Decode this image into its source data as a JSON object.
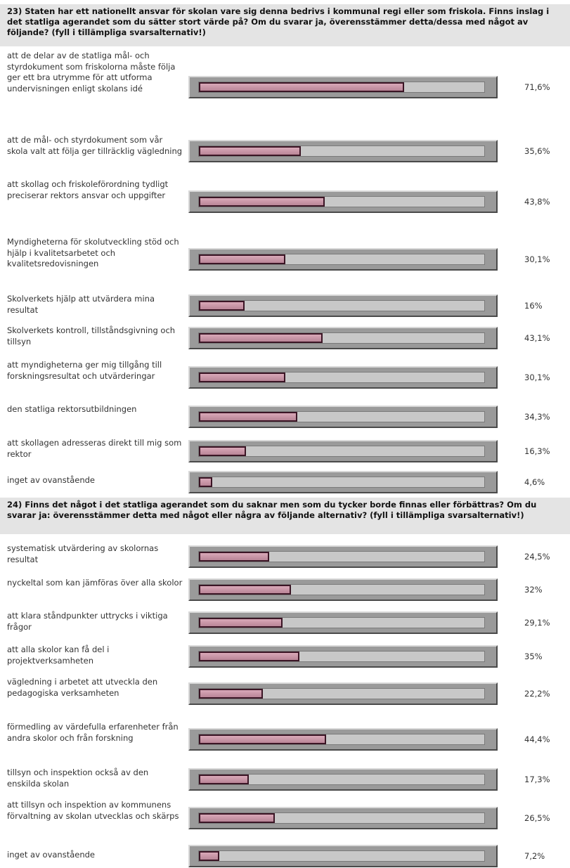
{
  "questions": [
    {
      "title": "23) Staten har ett nationellt ansvar för skolan vare sig denna bedrivs i kommunal regi eller som friskola. Finns inslag i det statliga agerandet som du sätter stort värde på? Om du svarar ja, överensstämmer detta/dessa med något av följande? (fyll i tillämpliga svarsalternativ!)",
      "items": [
        {
          "label": "att de delar av de statliga mål- och styrdokument som friskolorna måste följa ger ett bra utrymme för att utforma undervisningen enligt skolans idé",
          "value": 71.6,
          "value_label": "71,6%"
        },
        {
          "label": "att de mål- och styrdokument som vår skola valt att följa ger tillräcklig vägledning",
          "value": 35.6,
          "value_label": "35,6%"
        },
        {
          "label": "att skollag och friskoleförordning tydligt preciserar rektors ansvar och uppgifter",
          "value": 43.8,
          "value_label": "43,8%"
        },
        {
          "label": "Myndigheterna för skolutveckling stöd och hjälp i kvalitetsarbetet och kvalitetsredovisningen",
          "value": 30.1,
          "value_label": "30,1%"
        },
        {
          "label": "Skolverkets hjälp att utvärdera mina resultat",
          "value": 16,
          "value_label": "16%"
        },
        {
          "label": "Skolverkets kontroll, tillståndsgivning och tillsyn",
          "value": 43.1,
          "value_label": "43,1%"
        },
        {
          "label": "att myndigheterna ger mig tillgång till forskningsresultat och utvärderingar",
          "value": 30.1,
          "value_label": "30,1%"
        },
        {
          "label": "den statliga rektorsutbildningen",
          "value": 34.3,
          "value_label": "34,3%"
        },
        {
          "label": "att skollagen adresseras direkt till mig som rektor",
          "value": 16.3,
          "value_label": "16,3%"
        },
        {
          "label": "inget av ovanstående",
          "value": 4.6,
          "value_label": "4,6%"
        }
      ]
    },
    {
      "title": "24) Finns det något i det statliga agerandet som du saknar men som du tycker borde finnas eller förbättras? Om du svarar ja: överensstämmer detta med något eller några av följande alternativ? (fyll i tillämpliga svarsalternativ!)",
      "items": [
        {
          "label": "systematisk utvärdering av skolornas resultat",
          "value": 24.5,
          "value_label": "24,5%"
        },
        {
          "label": "nyckeltal som kan jämföras över alla skolor",
          "value": 32,
          "value_label": "32%"
        },
        {
          "label": "att klara ståndpunkter uttrycks i viktiga frågor",
          "value": 29.1,
          "value_label": "29,1%"
        },
        {
          "label": "att alla skolor kan få del i projektverksamheten",
          "value": 35,
          "value_label": "35%"
        },
        {
          "label": "vägledning i arbetet att utveckla den pedagogiska verksamheten",
          "value": 22.2,
          "value_label": "22,2%"
        },
        {
          "label": "förmedling av värdefulla erfarenheter från andra skolor och från forskning",
          "value": 44.4,
          "value_label": "44,4%"
        },
        {
          "label": "tillsyn och inspektion också av den enskilda skolan",
          "value": 17.3,
          "value_label": "17,3%"
        },
        {
          "label": "att tillsyn och inspektion av kommunens förvaltning av skolan utvecklas och skärps",
          "value": 26.5,
          "value_label": "26,5%"
        },
        {
          "label": "inget av ovanstående",
          "value": 7.2,
          "value_label": "7,2%"
        }
      ]
    }
  ],
  "chart_data": {
    "type": "bar",
    "orientation": "horizontal",
    "ylim": [
      0,
      100
    ],
    "groups": [
      {
        "categories": [
          "att de delar av de statliga mål- och styrdokument som friskolorna måste följa ger ett bra utrymme för att utforma undervisningen enligt skolans idé",
          "att de mål- och styrdokument som vår skola valt att följa ger tillräcklig vägledning",
          "att skollag och friskoleförordning tydligt preciserar rektors ansvar och uppgifter",
          "Myndigheterna för skolutveckling stöd och hjälp i kvalitetsarbetet och kvalitetsredovisningen",
          "Skolverkets hjälp att utvärdera mina resultat",
          "Skolverkets kontroll, tillståndsgivning och tillsyn",
          "att myndigheterna ger mig tillgång till forskningsresultat och utvärderingar",
          "den statliga rektorsutbildningen",
          "att skollagen adresseras direkt till mig som rektor",
          "inget av ovanstående"
        ],
        "values": [
          71.6,
          35.6,
          43.8,
          30.1,
          16,
          43.1,
          30.1,
          34.3,
          16.3,
          4.6
        ]
      },
      {
        "categories": [
          "systematisk utvärdering av skolornas resultat",
          "nyckeltal som kan jämföras över alla skolor",
          "att klara ståndpunkter uttrycks i viktiga frågor",
          "att alla skolor kan få del i projektverksamheten",
          "vägledning i arbetet att utveckla den pedagogiska verksamheten",
          "förmedling av värdefulla erfarenheter från andra skolor och från forskning",
          "tillsyn och inspektion också av den enskilda skolan",
          "att tillsyn och inspektion av kommunens förvaltning av skolan utvecklas och skärps",
          "inget av ovanstående"
        ],
        "values": [
          24.5,
          32,
          29.1,
          35,
          22.2,
          44.4,
          17.3,
          26.5,
          7.2
        ]
      }
    ],
    "colors": {
      "fill": "#c996a8",
      "fill_border": "#3b1525",
      "track": "#c8c8c8",
      "frame": "#9a9a9a"
    }
  }
}
